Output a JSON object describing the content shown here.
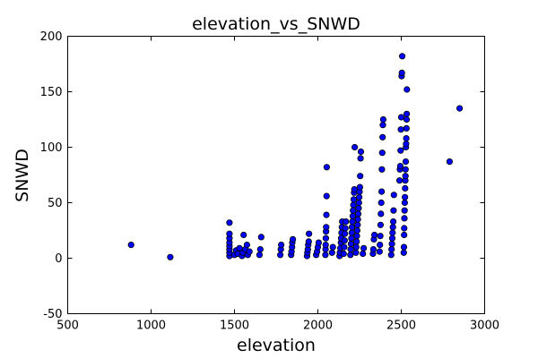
{
  "chart_data": {
    "type": "scatter",
    "title": "elevation_vs_SNWD",
    "xlabel": "elevation",
    "ylabel": "SNWD",
    "xlim": [
      500,
      3000
    ],
    "ylim": [
      -50,
      200
    ],
    "xticks": [
      500,
      1000,
      1500,
      2000,
      2500,
      3000
    ],
    "yticks": [
      -50,
      0,
      50,
      100,
      150,
      200
    ],
    "grid": false,
    "marker_color": "#0000ff",
    "marker_edge": "#000000",
    "points": [
      [
        880,
        12
      ],
      [
        1115,
        1
      ],
      [
        1470,
        2
      ],
      [
        1470,
        5
      ],
      [
        1470,
        8
      ],
      [
        1470,
        11
      ],
      [
        1470,
        14
      ],
      [
        1470,
        18
      ],
      [
        1470,
        22
      ],
      [
        1470,
        32
      ],
      [
        1500,
        3
      ],
      [
        1510,
        7
      ],
      [
        1520,
        4
      ],
      [
        1530,
        9
      ],
      [
        1545,
        2
      ],
      [
        1550,
        5
      ],
      [
        1555,
        21
      ],
      [
        1565,
        8
      ],
      [
        1575,
        12
      ],
      [
        1580,
        3
      ],
      [
        1590,
        6
      ],
      [
        1650,
        3
      ],
      [
        1655,
        8
      ],
      [
        1660,
        19
      ],
      [
        1775,
        3
      ],
      [
        1778,
        8
      ],
      [
        1780,
        12
      ],
      [
        1840,
        3
      ],
      [
        1842,
        6
      ],
      [
        1845,
        10
      ],
      [
        1847,
        14
      ],
      [
        1850,
        17
      ],
      [
        1935,
        2
      ],
      [
        1937,
        5
      ],
      [
        1940,
        8
      ],
      [
        1942,
        12
      ],
      [
        1945,
        15
      ],
      [
        1947,
        22
      ],
      [
        1990,
        3
      ],
      [
        1995,
        6
      ],
      [
        2000,
        10
      ],
      [
        2005,
        14
      ],
      [
        2045,
        3
      ],
      [
        2046,
        8
      ],
      [
        2047,
        12
      ],
      [
        2048,
        18
      ],
      [
        2049,
        24
      ],
      [
        2050,
        28
      ],
      [
        2051,
        39
      ],
      [
        2052,
        56
      ],
      [
        2053,
        82
      ],
      [
        2085,
        5
      ],
      [
        2090,
        10
      ],
      [
        2130,
        2
      ],
      [
        2132,
        5
      ],
      [
        2135,
        9
      ],
      [
        2138,
        14
      ],
      [
        2140,
        18
      ],
      [
        2142,
        23
      ],
      [
        2144,
        28
      ],
      [
        2146,
        33
      ],
      [
        2155,
        4
      ],
      [
        2158,
        10
      ],
      [
        2160,
        16
      ],
      [
        2162,
        22
      ],
      [
        2165,
        27
      ],
      [
        2168,
        33
      ],
      [
        2195,
        3
      ],
      [
        2197,
        8
      ],
      [
        2199,
        13
      ],
      [
        2201,
        18
      ],
      [
        2203,
        23
      ],
      [
        2205,
        28
      ],
      [
        2207,
        33
      ],
      [
        2209,
        38
      ],
      [
        2211,
        43
      ],
      [
        2213,
        48
      ],
      [
        2215,
        53
      ],
      [
        2217,
        59
      ],
      [
        2219,
        62
      ],
      [
        2221,
        100
      ],
      [
        2228,
        5
      ],
      [
        2230,
        10
      ],
      [
        2232,
        15
      ],
      [
        2234,
        20
      ],
      [
        2236,
        25
      ],
      [
        2238,
        30
      ],
      [
        2240,
        35
      ],
      [
        2242,
        40
      ],
      [
        2244,
        45
      ],
      [
        2246,
        50
      ],
      [
        2248,
        55
      ],
      [
        2250,
        60
      ],
      [
        2252,
        64
      ],
      [
        2254,
        74
      ],
      [
        2256,
        90
      ],
      [
        2258,
        96
      ],
      [
        2270,
        4
      ],
      [
        2275,
        9
      ],
      [
        2330,
        4
      ],
      [
        2333,
        8
      ],
      [
        2336,
        17
      ],
      [
        2339,
        21
      ],
      [
        2370,
        6
      ],
      [
        2372,
        12
      ],
      [
        2374,
        20
      ],
      [
        2376,
        30
      ],
      [
        2378,
        40
      ],
      [
        2380,
        50
      ],
      [
        2382,
        60
      ],
      [
        2384,
        80
      ],
      [
        2386,
        95
      ],
      [
        2388,
        109
      ],
      [
        2390,
        120
      ],
      [
        2392,
        125
      ],
      [
        2440,
        3
      ],
      [
        2442,
        8
      ],
      [
        2444,
        13
      ],
      [
        2446,
        18
      ],
      [
        2448,
        23
      ],
      [
        2450,
        28
      ],
      [
        2452,
        33
      ],
      [
        2454,
        43
      ],
      [
        2456,
        57
      ],
      [
        2490,
        70
      ],
      [
        2492,
        80
      ],
      [
        2494,
        83
      ],
      [
        2496,
        97
      ],
      [
        2498,
        116
      ],
      [
        2500,
        127
      ],
      [
        2502,
        164
      ],
      [
        2504,
        167
      ],
      [
        2506,
        182
      ],
      [
        2515,
        5
      ],
      [
        2516,
        10
      ],
      [
        2517,
        21
      ],
      [
        2518,
        27
      ],
      [
        2519,
        36
      ],
      [
        2520,
        43
      ],
      [
        2521,
        50
      ],
      [
        2522,
        55
      ],
      [
        2523,
        63
      ],
      [
        2524,
        70
      ],
      [
        2525,
        74
      ],
      [
        2526,
        80
      ],
      [
        2527,
        87
      ],
      [
        2528,
        100
      ],
      [
        2529,
        103
      ],
      [
        2530,
        108
      ],
      [
        2531,
        117
      ],
      [
        2532,
        125
      ],
      [
        2533,
        130
      ],
      [
        2534,
        152
      ],
      [
        2790,
        87
      ],
      [
        2850,
        135
      ]
    ]
  }
}
